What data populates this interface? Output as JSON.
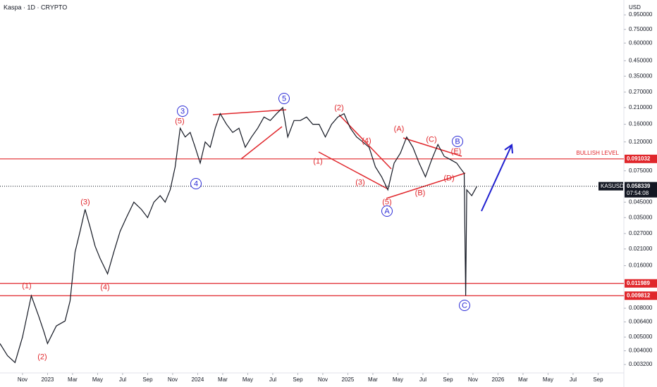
{
  "header": {
    "title": "Kaspa · 1D · CRYPTO",
    "currency": "USD"
  },
  "chart_data": {
    "type": "line",
    "color": "#131722",
    "log_scale": true,
    "xlim": [
      -1.8,
      48.06
    ],
    "ylim": [
      0.00279,
      1.21
    ],
    "xticks": [
      {
        "value": 0,
        "label": "Nov"
      },
      {
        "value": 2,
        "label": "2023"
      },
      {
        "value": 4,
        "label": "Mar"
      },
      {
        "value": 6,
        "label": "May"
      },
      {
        "value": 8,
        "label": "Jul"
      },
      {
        "value": 10,
        "label": "Sep"
      },
      {
        "value": 12,
        "label": "Nov"
      },
      {
        "value": 14,
        "label": "2024"
      },
      {
        "value": 16,
        "label": "Mar"
      },
      {
        "value": 18,
        "label": "May"
      },
      {
        "value": 20,
        "label": "Jul"
      },
      {
        "value": 22,
        "label": "Sep"
      },
      {
        "value": 24,
        "label": "Nov"
      },
      {
        "value": 26,
        "label": "2025"
      },
      {
        "value": 28,
        "label": "Mar"
      },
      {
        "value": 30,
        "label": "May"
      },
      {
        "value": 32,
        "label": "Jul"
      },
      {
        "value": 34,
        "label": "Sep"
      },
      {
        "value": 36,
        "label": "Nov"
      },
      {
        "value": 38,
        "label": "2026"
      },
      {
        "value": 40,
        "label": "Mar"
      },
      {
        "value": 42,
        "label": "May"
      },
      {
        "value": 44,
        "label": "Jul"
      },
      {
        "value": 46,
        "label": "Sep"
      }
    ],
    "yticks": [
      {
        "value": 0.95,
        "label": "0.950000"
      },
      {
        "value": 0.75,
        "label": "0.750000"
      },
      {
        "value": 0.6,
        "label": "0.600000"
      },
      {
        "value": 0.45,
        "label": "0.450000"
      },
      {
        "value": 0.35,
        "label": "0.350000"
      },
      {
        "value": 0.27,
        "label": "0.270000"
      },
      {
        "value": 0.21,
        "label": "0.210000"
      },
      {
        "value": 0.16,
        "label": "0.160000"
      },
      {
        "value": 0.12,
        "label": "0.120000"
      },
      {
        "value": 0.075,
        "label": "0.075000"
      },
      {
        "value": 0.045,
        "label": "0.045000"
      },
      {
        "value": 0.035,
        "label": "0.035000"
      },
      {
        "value": 0.027,
        "label": "0.027000"
      },
      {
        "value": 0.021,
        "label": "0.021000"
      },
      {
        "value": 0.016,
        "label": "0.016000"
      },
      {
        "value": 0.008,
        "label": "0.008000"
      },
      {
        "value": 0.0064,
        "label": "0.006400"
      },
      {
        "value": 0.005,
        "label": "0.005000"
      },
      {
        "value": 0.004,
        "label": "0.004000"
      },
      {
        "value": 0.0032,
        "label": "0.003200"
      }
    ],
    "x": [
      -1.8,
      -1.2,
      -0.6,
      0,
      0.7,
      1.3,
      1.7,
      2.0,
      2.7,
      3.4,
      3.8,
      4.2,
      4.6,
      5.0,
      5.4,
      5.8,
      6.2,
      6.8,
      7.3,
      7.8,
      8.3,
      8.9,
      9.5,
      10.0,
      10.5,
      11.0,
      11.4,
      11.8,
      12.2,
      12.6,
      13.0,
      13.4,
      13.8,
      14.2,
      14.6,
      15.0,
      15.4,
      15.8,
      16.3,
      16.8,
      17.3,
      17.8,
      18.3,
      18.8,
      19.3,
      19.8,
      20.3,
      20.8,
      21.2,
      21.7,
      22.2,
      22.7,
      23.2,
      23.7,
      24.2,
      24.7,
      25.2,
      25.7,
      26.2,
      26.7,
      27.2,
      27.7,
      28.2,
      28.7,
      29.2,
      29.7,
      30.2,
      30.7,
      31.2,
      31.7,
      32.2,
      32.7,
      33.2,
      33.7,
      34.2,
      34.7,
      35.0,
      35.3,
      35.42,
      35.5,
      35.9,
      36.3
    ],
    "values": [
      0.0045,
      0.0037,
      0.0033,
      0.005,
      0.0098,
      0.007,
      0.0055,
      0.0045,
      0.006,
      0.0065,
      0.009,
      0.02,
      0.028,
      0.04,
      0.03,
      0.022,
      0.018,
      0.014,
      0.02,
      0.028,
      0.035,
      0.045,
      0.04,
      0.035,
      0.045,
      0.05,
      0.045,
      0.055,
      0.08,
      0.15,
      0.13,
      0.14,
      0.11,
      0.085,
      0.12,
      0.11,
      0.15,
      0.19,
      0.16,
      0.14,
      0.15,
      0.11,
      0.13,
      0.15,
      0.18,
      0.17,
      0.19,
      0.21,
      0.13,
      0.17,
      0.17,
      0.18,
      0.16,
      0.16,
      0.13,
      0.16,
      0.18,
      0.19,
      0.15,
      0.13,
      0.12,
      0.11,
      0.08,
      0.068,
      0.055,
      0.085,
      0.1,
      0.13,
      0.11,
      0.085,
      0.068,
      0.09,
      0.115,
      0.095,
      0.09,
      0.085,
      0.078,
      0.072,
      0.0098,
      0.055,
      0.05,
      0.058
    ],
    "levels": [
      0.091032,
      0.011989,
      0.009812
    ],
    "level_label": "BULLISH LEVEL",
    "current": {
      "symbol": "KASUSD",
      "price": 0.058339,
      "countdown": "07:54:08"
    },
    "annotations": [
      {
        "text": "(1)",
        "color": "#e0262b"
      },
      {
        "text": "(2)",
        "color": "#e0262b"
      },
      {
        "text": "(3)",
        "color": "#e0262b"
      },
      {
        "text": "(4)",
        "color": "#e0262b"
      },
      {
        "text": "(5)",
        "color": "#e0262b"
      },
      {
        "text": "3",
        "color": "#2b2bd6"
      },
      {
        "text": "4",
        "color": "#2b2bd6"
      },
      {
        "text": "5",
        "color": "#2b2bd6"
      },
      {
        "text": "(2)",
        "color": "#e0262b"
      },
      {
        "text": "(4)",
        "color": "#e0262b"
      },
      {
        "text": "(1)",
        "color": "#e0262b"
      },
      {
        "text": "(3)",
        "color": "#e0262b"
      },
      {
        "text": "(5)",
        "color": "#e0262b"
      },
      {
        "text": "A",
        "color": "#2b2bd6"
      },
      {
        "text": "(A)",
        "color": "#e0262b"
      },
      {
        "text": "(C)",
        "color": "#e0262b"
      },
      {
        "text": "B",
        "color": "#2b2bd6"
      },
      {
        "text": "(E)",
        "color": "#e0262b"
      },
      {
        "text": "(D)",
        "color": "#e0262b"
      },
      {
        "text": "(B)",
        "color": "#e0262b"
      },
      {
        "text": "C",
        "color": "#2b2bd6"
      }
    ]
  }
}
